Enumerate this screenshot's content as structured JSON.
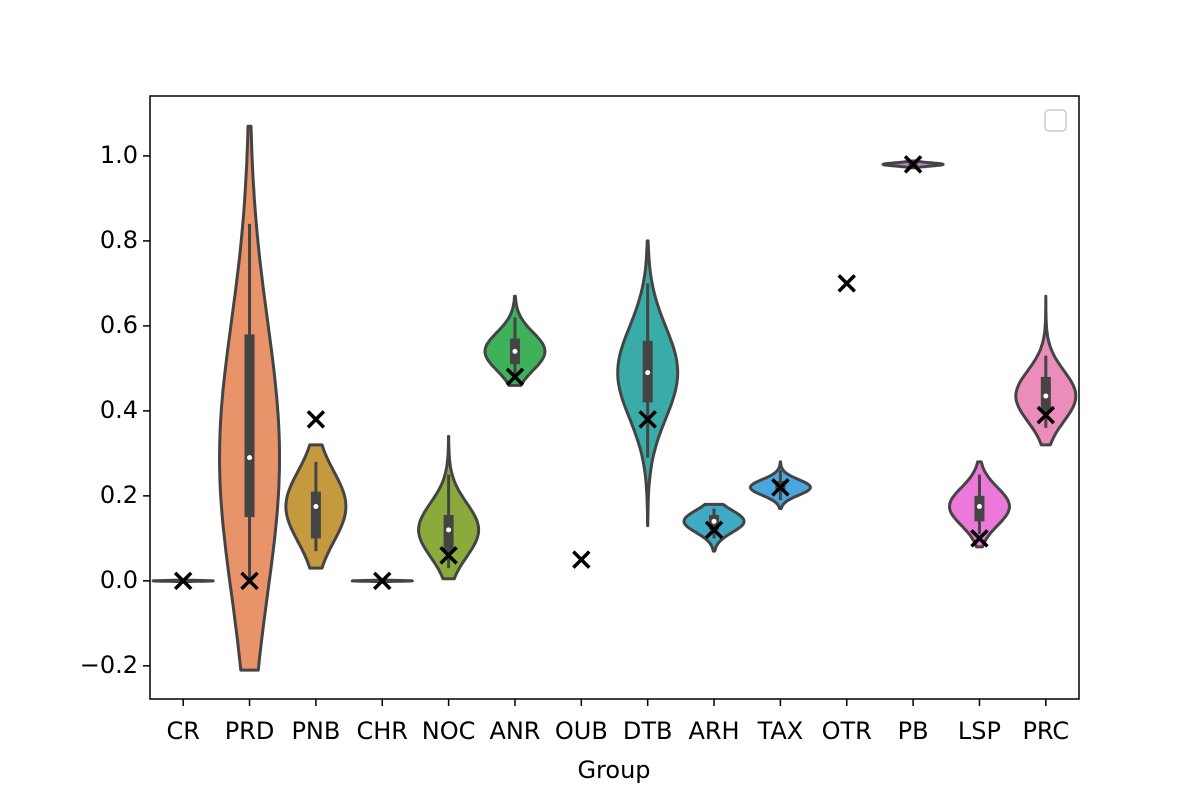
{
  "chart_data": {
    "type": "violin",
    "xlabel": "Group",
    "categories": [
      "CR",
      "PRD",
      "PNB",
      "CHR",
      "NOC",
      "ANR",
      "OUB",
      "DTB",
      "ARH",
      "TAX",
      "OTR",
      "PB",
      "LSP",
      "PRC"
    ],
    "colors": [
      "#f07d6f",
      "#e8936a",
      "#c59a3e",
      "#a7a23c",
      "#8aab3c",
      "#3fb15a",
      "#3daf95",
      "#3aaca7",
      "#3eaac4",
      "#4aa6df",
      "#8f97e8",
      "#b98ae6",
      "#ec78d9",
      "#ec8cbb"
    ],
    "violin_min": [
      -0.003,
      -0.21,
      0.03,
      -0.003,
      0.005,
      0.46,
      null,
      0.13,
      0.07,
      0.17,
      null,
      0.972,
      0.08,
      0.32
    ],
    "violin_max": [
      0.003,
      1.07,
      0.32,
      0.003,
      0.34,
      0.67,
      null,
      0.8,
      0.18,
      0.28,
      null,
      0.988,
      0.28,
      0.67
    ],
    "whisker_low": [
      0,
      0,
      0.07,
      0,
      0.03,
      0.48,
      null,
      0.29,
      0.1,
      0.19,
      null,
      0.975,
      0.11,
      0.36
    ],
    "whisker_high": [
      0,
      0.84,
      0.28,
      0,
      0.25,
      0.62,
      null,
      0.7,
      0.17,
      0.26,
      null,
      0.985,
      0.25,
      0.53
    ],
    "q1": [
      0,
      0.15,
      0.1,
      0,
      0.07,
      0.51,
      null,
      0.42,
      0.12,
      0.21,
      null,
      0.977,
      0.14,
      0.4
    ],
    "median": [
      0,
      0.29,
      0.175,
      0,
      0.12,
      0.54,
      null,
      0.49,
      0.14,
      0.22,
      null,
      0.98,
      0.175,
      0.435
    ],
    "q3": [
      0,
      0.58,
      0.21,
      0,
      0.155,
      0.57,
      null,
      0.565,
      0.155,
      0.235,
      null,
      0.982,
      0.2,
      0.48
    ],
    "markers": [
      0,
      0,
      0.38,
      0,
      0.06,
      0.48,
      0.05,
      0.38,
      0.12,
      0.22,
      0.7,
      0.98,
      0.1,
      0.39
    ],
    "ylim": [
      -0.278,
      1.141
    ],
    "yticks": [
      {
        "value": -0.2,
        "label": "−0.2"
      },
      {
        "value": 0,
        "label": "0.0"
      },
      0.2,
      0.4,
      0.6,
      0.8,
      {
        "value": 1,
        "label": "1.0"
      }
    ],
    "legend": "upper right"
  }
}
